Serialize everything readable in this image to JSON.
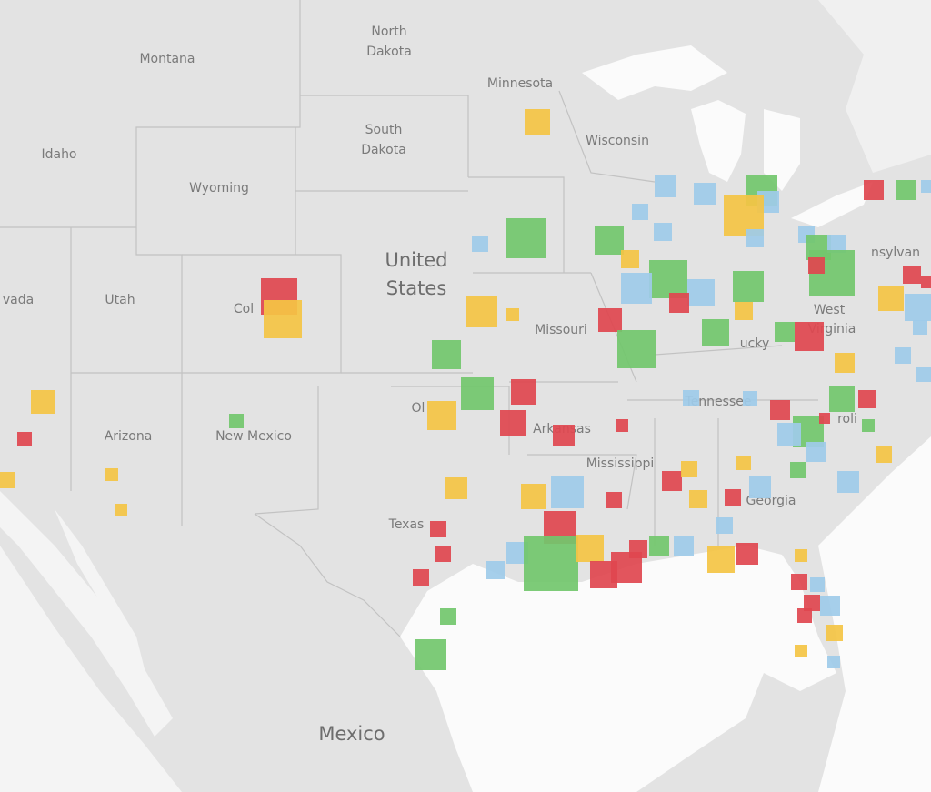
{
  "map": {
    "labels": [
      "Montana",
      "North",
      "Dakota",
      "Minnesota",
      "South",
      "Dakota",
      "Wisconsin",
      "Idaho",
      "Wyoming",
      "vada",
      "Utah",
      "Col",
      "United",
      "States",
      "Missouri",
      "West",
      "Virginia",
      "nsylvan",
      "ucky",
      "Ol",
      "Arkansas",
      "Tennessee",
      "roli",
      "Arizona",
      "New Mexico",
      "Mississippi",
      "Georgia",
      "Texas",
      "Mexico"
    ]
  }
}
